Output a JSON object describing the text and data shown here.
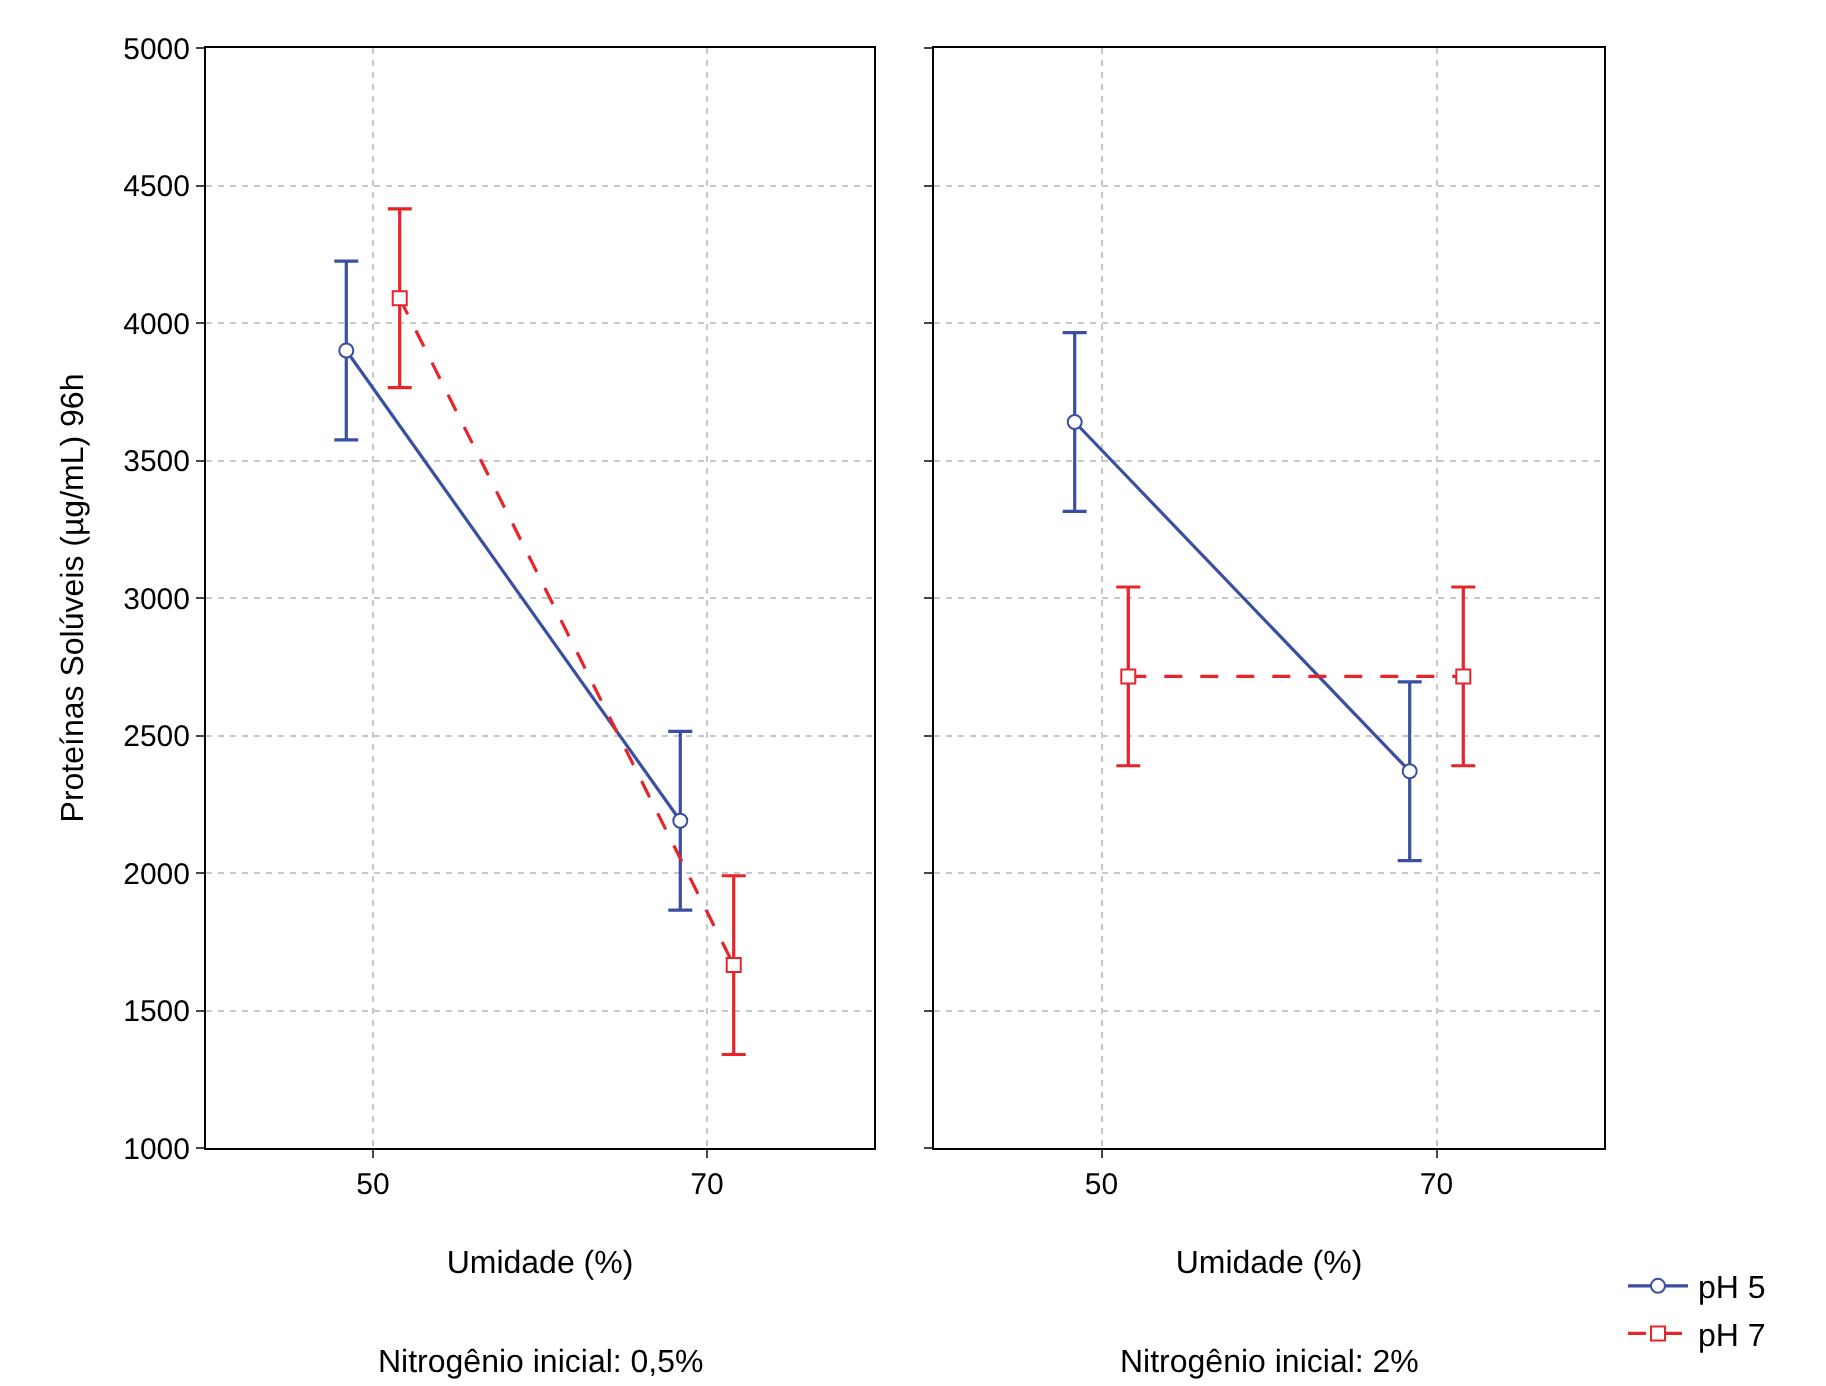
{
  "chart_data": [
    {
      "type": "line",
      "categories": [
        "50",
        "70"
      ],
      "xlabel": "Umidade (%)",
      "ylabel": "Proteínas Solúveis (µg/mL) 96h",
      "annotations": [
        "Nitrogênio inicial: 0,5%"
      ],
      "ylim": [
        1000,
        5000
      ],
      "yticks": [
        1000,
        1500,
        2000,
        2500,
        3000,
        3500,
        4000,
        4500,
        5000
      ],
      "grid": true,
      "series": [
        {
          "color": "#3a4fa0",
          "values": [
            3900,
            2190
          ],
          "errors": [
            325,
            325
          ],
          "marker": "circle",
          "line_style": "solid"
        },
        {
          "color": "#e8242b",
          "values": [
            4090,
            1665
          ],
          "errors": [
            325,
            325
          ],
          "marker": "square",
          "line_style": "dashed"
        }
      ]
    },
    {
      "type": "line",
      "categories": [
        "50",
        "70"
      ],
      "xlabel": "Umidade (%)",
      "annotations": [
        "Nitrogênio inicial: 2%"
      ],
      "ylim": [
        1000,
        5000
      ],
      "yticks": [
        1000,
        1500,
        2000,
        2500,
        3000,
        3500,
        4000,
        4500,
        5000
      ],
      "grid": true,
      "legend": "bottom right",
      "tick_labels": "x",
      "series": [
        {
          "name": "pH 5",
          "color": "#3a4fa0",
          "values": [
            3640,
            2370
          ],
          "errors": [
            325,
            325
          ],
          "marker": "circle",
          "line_style": "solid"
        },
        {
          "name": "pH 7",
          "color": "#e8242b",
          "values": [
            2715,
            2715
          ],
          "errors": [
            325,
            325
          ],
          "marker": "square",
          "line_style": "dashed"
        }
      ]
    }
  ]
}
